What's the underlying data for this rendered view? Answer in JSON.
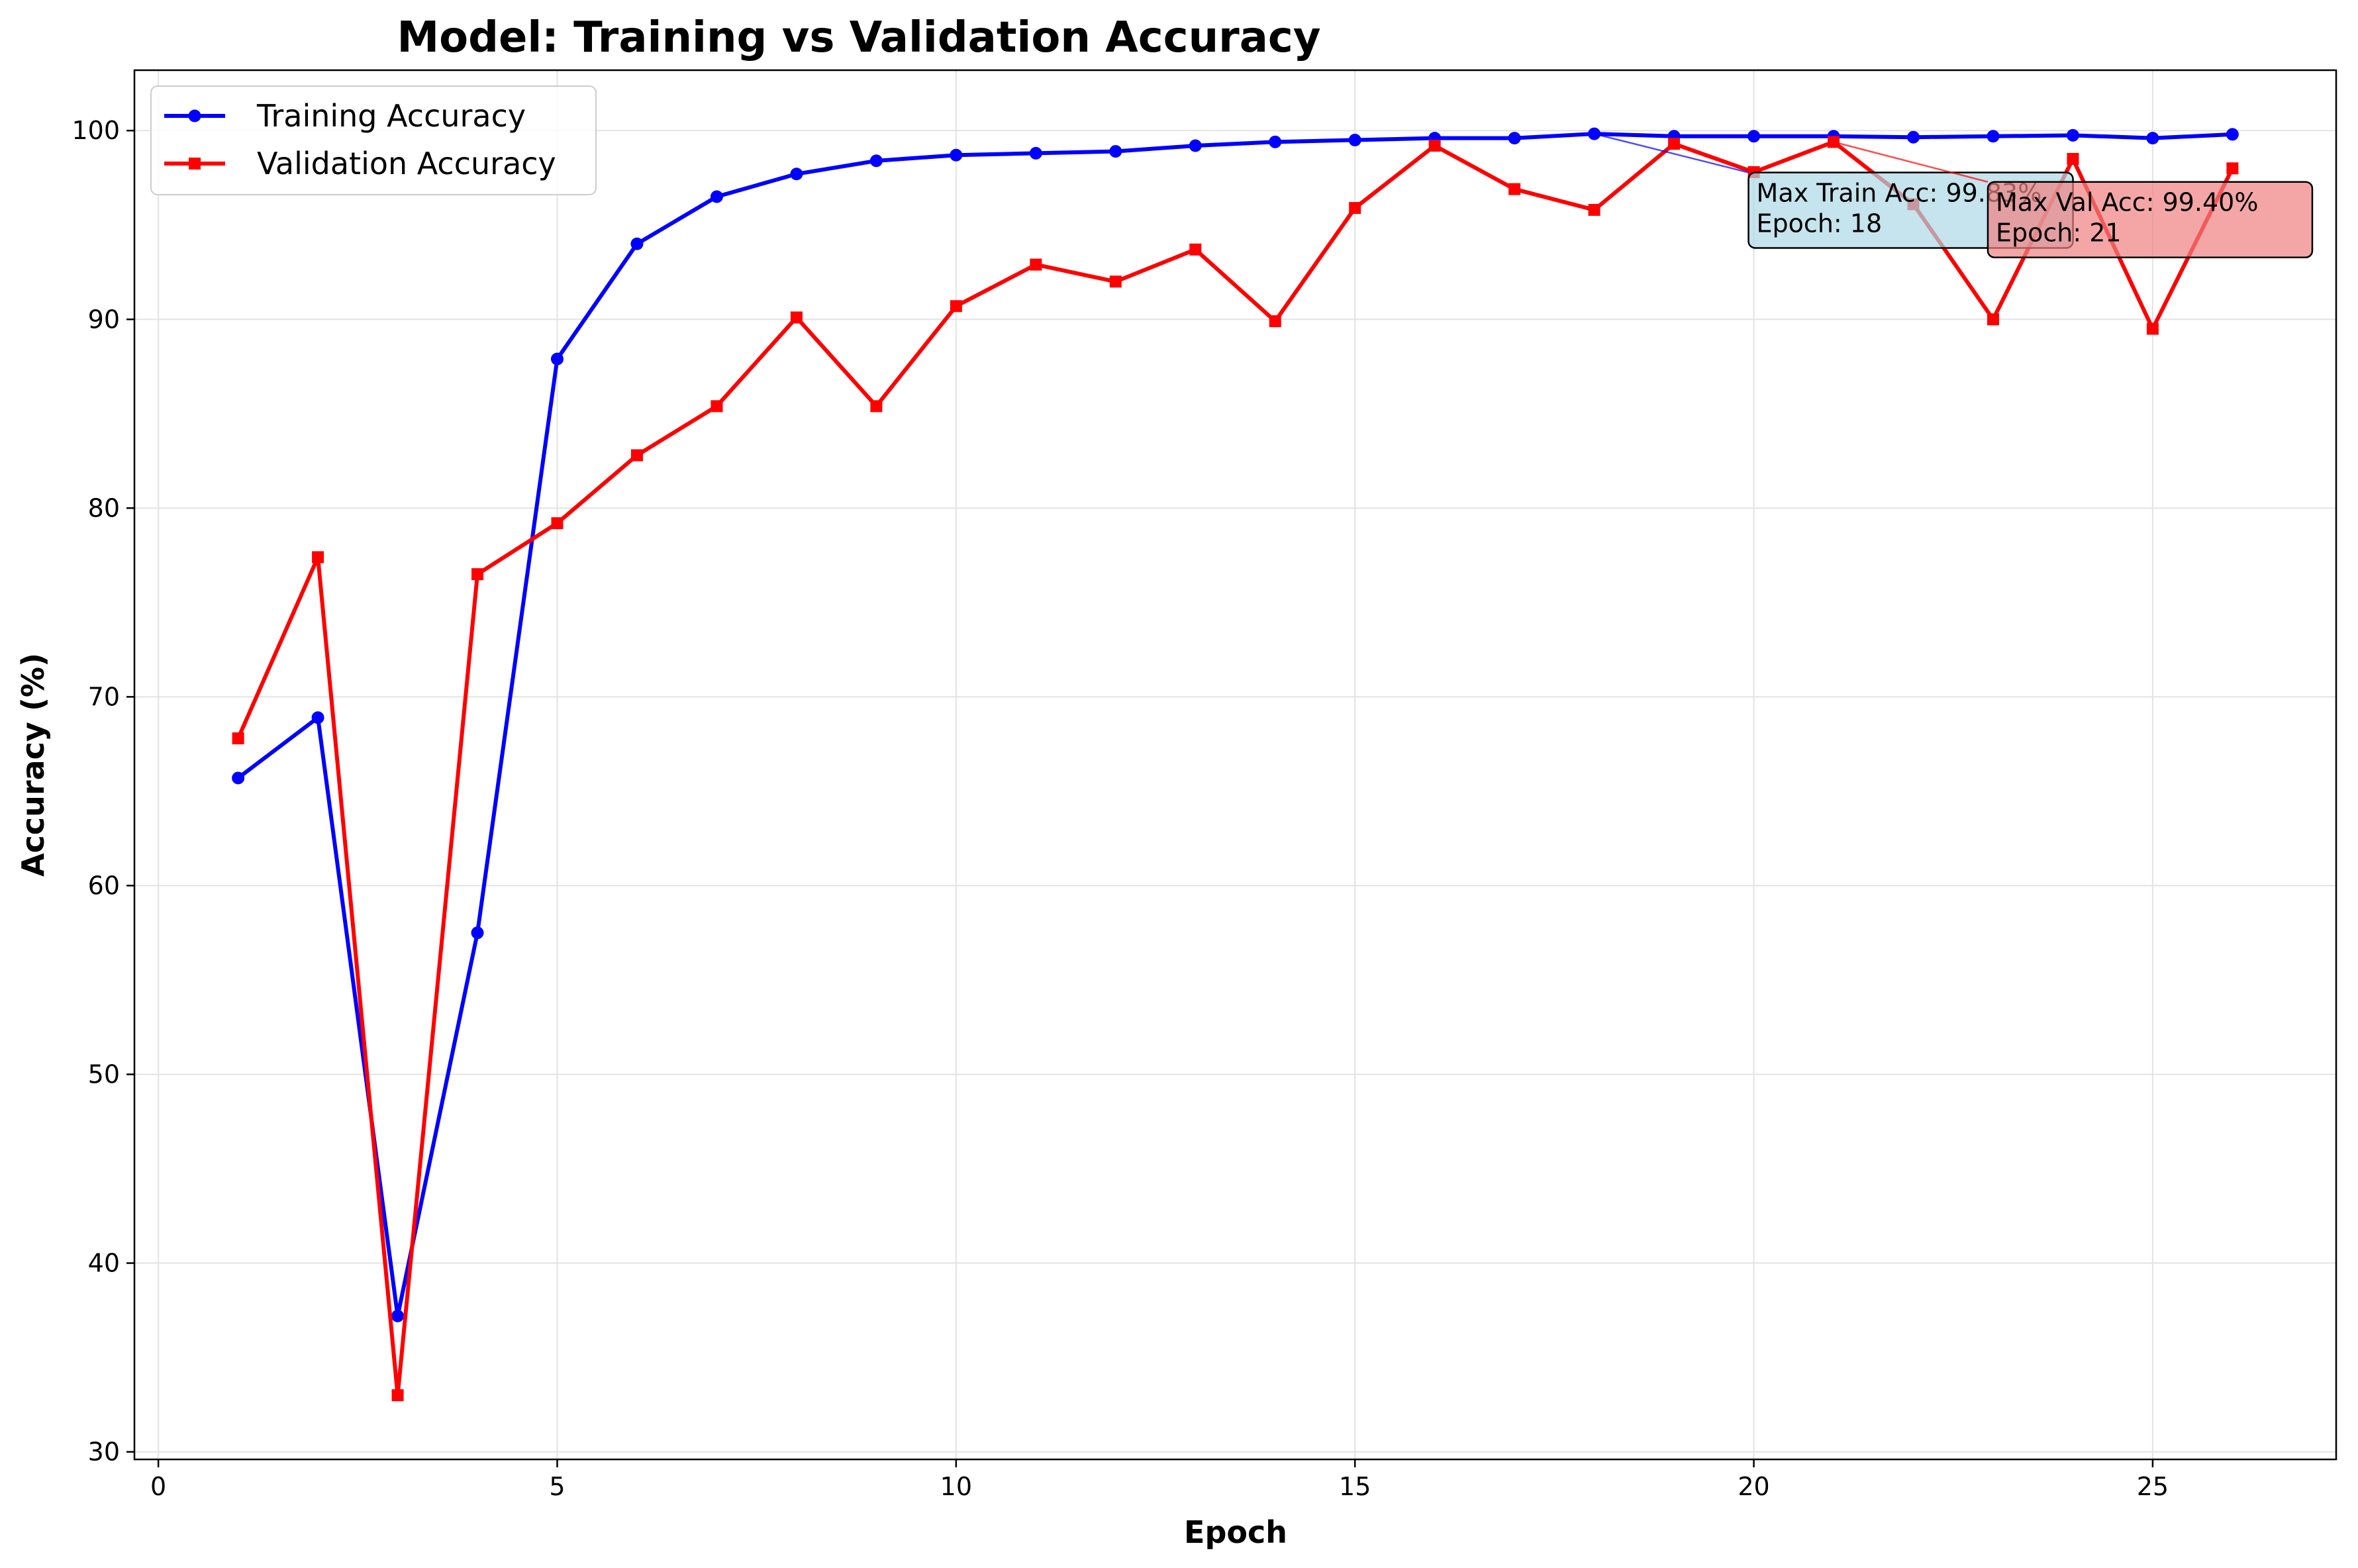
{
  "chart_data": {
    "type": "line",
    "title": "Model: Training vs Validation Accuracy",
    "xlabel": "Epoch",
    "ylabel": "Accuracy (%)",
    "xlim": [
      -0.3,
      27.3
    ],
    "ylim": [
      29.6,
      103.2
    ],
    "xticks": [
      0,
      5,
      10,
      15,
      20,
      25
    ],
    "yticks": [
      30,
      40,
      50,
      60,
      70,
      80,
      90,
      100
    ],
    "grid": true,
    "legend_position": "top-left",
    "x": [
      1,
      2,
      3,
      4,
      5,
      6,
      7,
      8,
      9,
      10,
      11,
      12,
      13,
      14,
      15,
      16,
      17,
      18,
      19,
      20,
      21,
      22,
      23,
      24,
      25,
      26
    ],
    "series": [
      {
        "name": "Training Accuracy",
        "color": "#0000ff",
        "marker": "circle",
        "values": [
          65.7,
          68.9,
          37.2,
          57.5,
          87.9,
          94.0,
          96.5,
          97.7,
          98.4,
          98.7,
          98.8,
          98.9,
          99.2,
          99.4,
          99.5,
          99.6,
          99.6,
          99.83,
          99.7,
          99.7,
          99.7,
          99.65,
          99.7,
          99.75,
          99.6,
          99.8
        ]
      },
      {
        "name": "Validation Accuracy",
        "color": "#ff0000",
        "marker": "square",
        "values": [
          67.8,
          77.4,
          33.0,
          76.5,
          79.2,
          82.8,
          85.4,
          90.1,
          85.4,
          90.7,
          92.9,
          92.0,
          93.7,
          89.9,
          95.9,
          99.2,
          96.9,
          95.8,
          99.3,
          97.8,
          99.4,
          96.1,
          90.0,
          98.5,
          89.5,
          98.0
        ]
      }
    ],
    "annotations": [
      {
        "lines": [
          "Max Train Acc: 99.83%",
          "Epoch: 18"
        ],
        "target_x": 18,
        "target_y": 99.83,
        "box_x": 20,
        "box_y": 97.5,
        "box_color": "#add8e6",
        "arrow_color": "#0000ff"
      },
      {
        "lines": [
          "Max Val Acc: 99.40%",
          "Epoch: 21"
        ],
        "target_x": 21,
        "target_y": 99.4,
        "box_x": 23,
        "box_y": 97.0,
        "box_color": "#f08080",
        "arrow_color": "#ff0000"
      }
    ]
  }
}
